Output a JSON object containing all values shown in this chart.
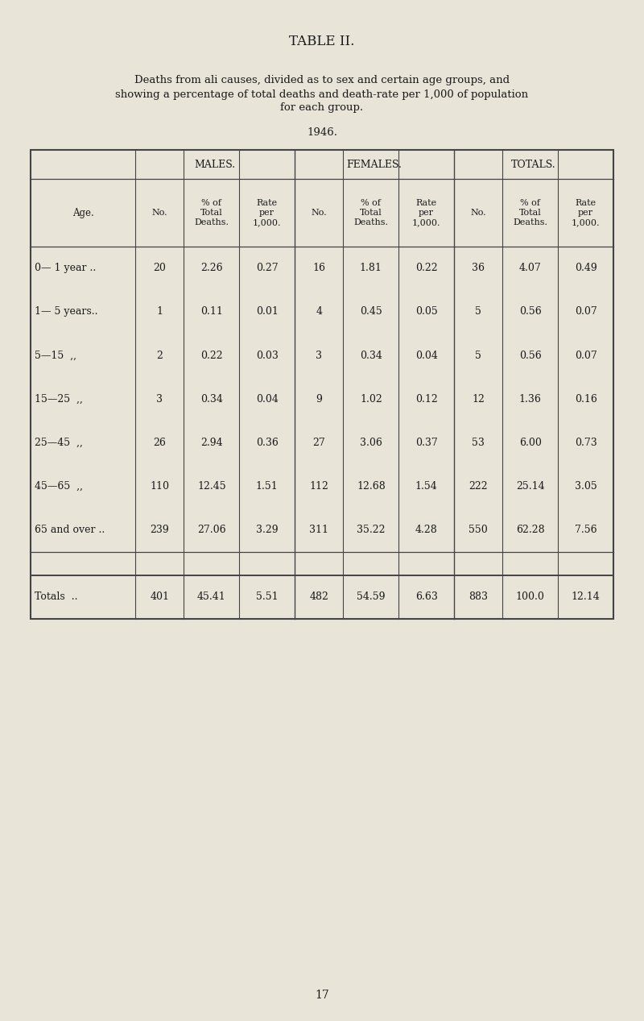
{
  "title": "TABLE II.",
  "subtitle_line1": "Deaths from ali causes, divided as to sex and certain age groups, and",
  "subtitle_line2": "showing a percentage of total deaths and death-rate per 1,000 of population",
  "subtitle_line3": "for each group.",
  "year": "1946.",
  "page_number": "17",
  "bg_color": "#e8e4d8",
  "text_color": "#1a1a1a",
  "group_headers": [
    "MALES.",
    "FEMALES.",
    "TOTALS."
  ],
  "age_label": "Age.",
  "rows": [
    [
      "0— 1 year ..",
      "20",
      "2.26",
      "0.27",
      "16",
      "1.81",
      "0.22",
      "36",
      "4.07",
      "0.49"
    ],
    [
      "1— 5 years..",
      "1",
      "0.11",
      "0.01",
      "4",
      "0.45",
      "0.05",
      "5",
      "0.56",
      "0.07"
    ],
    [
      "5—15  ,,",
      "2",
      "0.22",
      "0.03",
      "3",
      "0.34",
      "0.04",
      "5",
      "0.56",
      "0.07"
    ],
    [
      "15—25  ,,",
      "3",
      "0.34",
      "0.04",
      "9",
      "1.02",
      "0.12",
      "12",
      "1.36",
      "0.16"
    ],
    [
      "25—45  ,,",
      "26",
      "2.94",
      "0.36",
      "27",
      "3.06",
      "0.37",
      "53",
      "6.00",
      "0.73"
    ],
    [
      "45—65  ,,",
      "110",
      "12.45",
      "1.51",
      "112",
      "12.68",
      "1.54",
      "222",
      "25.14",
      "3.05"
    ],
    [
      "65 and over ..",
      "239",
      "27.06",
      "3.29",
      "311",
      "35.22",
      "4.28",
      "550",
      "62.28",
      "7.56"
    ]
  ],
  "totals_row": [
    "Totals  ..",
    "401",
    "45.41",
    "5.51",
    "482",
    "54.59",
    "6.63",
    "883",
    "100.0",
    "12.14"
  ],
  "col_widths_rel": [
    1.55,
    0.72,
    0.82,
    0.82,
    0.72,
    0.82,
    0.82,
    0.72,
    0.82,
    0.82
  ],
  "font_size_title": 12,
  "font_size_subtitle": 9.5,
  "font_size_year": 9.5,
  "font_size_table": 9,
  "font_size_header": 8.5,
  "font_size_page": 10,
  "table_line_color": "#444444",
  "table_lw_outer": 1.5,
  "table_lw_inner": 0.8
}
